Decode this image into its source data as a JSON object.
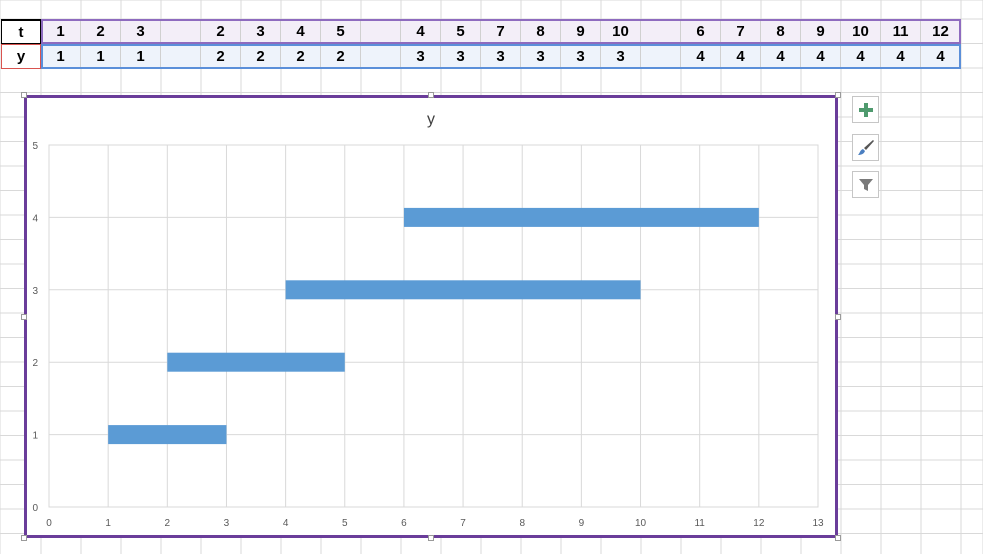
{
  "spreadsheet": {
    "rows": [
      {
        "header": "t",
        "cells": [
          "1",
          "2",
          "3",
          "",
          "2",
          "3",
          "4",
          "5",
          "",
          "4",
          "5",
          "7",
          "8",
          "9",
          "10",
          "",
          "6",
          "7",
          "8",
          "9",
          "10",
          "11",
          "12"
        ]
      },
      {
        "header": "y",
        "cells": [
          "1",
          "1",
          "1",
          "",
          "2",
          "2",
          "2",
          "2",
          "",
          "3",
          "3",
          "3",
          "3",
          "3",
          "3",
          "",
          "4",
          "4",
          "4",
          "4",
          "4",
          "4",
          "4"
        ]
      }
    ],
    "colors": {
      "t_row_fill": "#f3eef8",
      "y_row_fill": "#eef3fb",
      "t_border": "#8e6bbf",
      "y_border": "#5b8fd9",
      "y_header_border": "#d9534f"
    }
  },
  "side_buttons": [
    {
      "name": "chart-elements-button",
      "icon": "plus-icon"
    },
    {
      "name": "chart-styles-button",
      "icon": "paintbrush-icon"
    },
    {
      "name": "chart-filters-button",
      "icon": "filter-icon"
    }
  ],
  "chart_data": {
    "type": "bar",
    "title": "y",
    "xlabel": "",
    "ylabel": "",
    "xlim": [
      0,
      13
    ],
    "ylim": [
      0,
      5
    ],
    "xticks": [
      "0",
      "1",
      "2",
      "3",
      "4",
      "5",
      "6",
      "7",
      "8",
      "9",
      "10",
      "11",
      "12",
      "13"
    ],
    "yticks": [
      "0",
      "1",
      "2",
      "3",
      "4",
      "5"
    ],
    "grid": true,
    "series": [
      {
        "y": 1,
        "x_start": 1,
        "x_end": 3
      },
      {
        "y": 2,
        "x_start": 2,
        "x_end": 5
      },
      {
        "y": 3,
        "x_start": 4,
        "x_end": 10
      },
      {
        "y": 4,
        "x_start": 6,
        "x_end": 12
      }
    ],
    "color": "#5b9bd5"
  }
}
